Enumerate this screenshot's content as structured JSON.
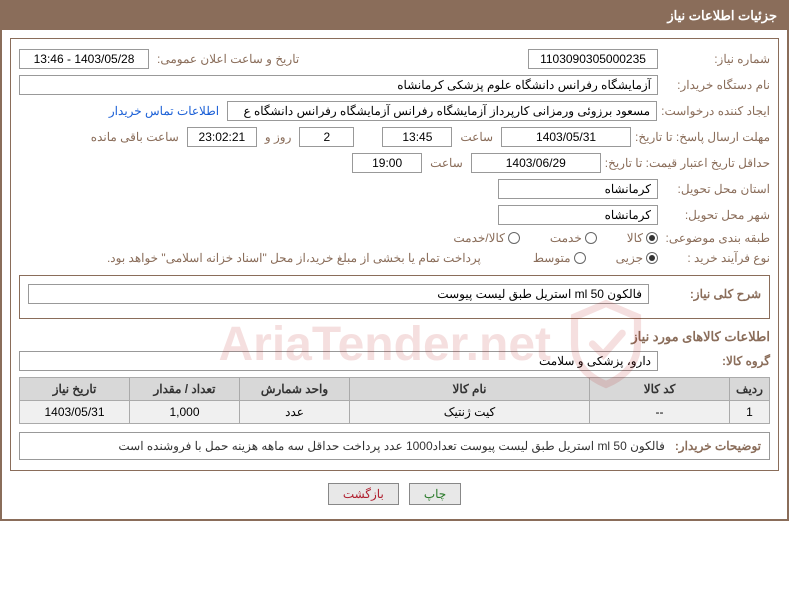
{
  "panel_title": "جزئیات اطلاعات نیاز",
  "labels": {
    "need_no": "شماره نیاز:",
    "announce": "تاریخ و ساعت اعلان عمومی:",
    "buyer_org": "نام دستگاه خریدار:",
    "creator": "ایجاد کننده درخواست:",
    "contact_link": "اطلاعات تماس خریدار",
    "reply_deadline": "مهلت ارسال پاسخ: تا تاریخ:",
    "time": "ساعت",
    "days_and": "روز و",
    "remaining": "ساعت باقی مانده",
    "price_validity": "حداقل تاریخ اعتبار قیمت: تا تاریخ:",
    "delivery_province": "استان محل تحویل:",
    "delivery_city": "شهر محل تحویل:",
    "subject_class": "طبقه بندی موضوعی:",
    "purchase_type": "نوع فرآیند خرید :",
    "payment_note": "پرداخت تمام یا بخشی از مبلغ خرید،از محل \"اسناد خزانه اسلامی\" خواهد بود.",
    "general_desc": "شرح کلی نیاز:",
    "goods_info": "اطلاعات کالاهای مورد نیاز",
    "goods_group": "گروه کالا:",
    "buyer_notes": "توضیحات خریدار:"
  },
  "values": {
    "need_no": "1103090305000235",
    "announce": "1403/05/28 - 13:46",
    "buyer_org": "آزمایشگاه رفرانس دانشگاه علوم پزشکی کرمانشاه",
    "creator": "مسعود برزوئی ورمزانی کارپرداز آزمایشگاه رفرانس آزمایشگاه رفرانس دانشگاه ع",
    "reply_date": "1403/05/31",
    "reply_time": "13:45",
    "days_left": "2",
    "countdown": "23:02:21",
    "price_date": "1403/06/29",
    "price_time": "19:00",
    "province": "کرمانشاه",
    "city": "کرمانشاه",
    "general_desc": "فالکون ml 50 استریل طبق لیست پیوست",
    "goods_group": "دارو، پزشکی و سلامت",
    "buyer_notes": "فالکون ml 50 استریل طبق لیست پیوست تعداد1000 عدد پرداخت حداقل سه ماهه هزینه حمل با فروشنده است"
  },
  "radios": {
    "subject": [
      {
        "label": "کالا",
        "checked": true
      },
      {
        "label": "خدمت",
        "checked": false
      },
      {
        "label": "کالا/خدمت",
        "checked": false
      }
    ],
    "purchase": [
      {
        "label": "جزیی",
        "checked": true
      },
      {
        "label": "متوسط",
        "checked": false
      }
    ]
  },
  "table": {
    "columns": [
      "ردیف",
      "کد کالا",
      "نام کالا",
      "واحد شمارش",
      "تعداد / مقدار",
      "تاریخ نیاز"
    ],
    "rows": [
      [
        "1",
        "--",
        "کیت ژنتیک",
        "عدد",
        "1,000",
        "1403/05/31"
      ]
    ],
    "col_widths": [
      "40px",
      "140px",
      "auto",
      "110px",
      "110px",
      "110px"
    ]
  },
  "buttons": {
    "print": "چاپ",
    "back": "بازگشت"
  },
  "watermark_text": "AriaTender.net",
  "colors": {
    "brown": "#8a6d5a",
    "header_gray": "#d8d8d8",
    "row_gray": "#f0f0f0"
  }
}
